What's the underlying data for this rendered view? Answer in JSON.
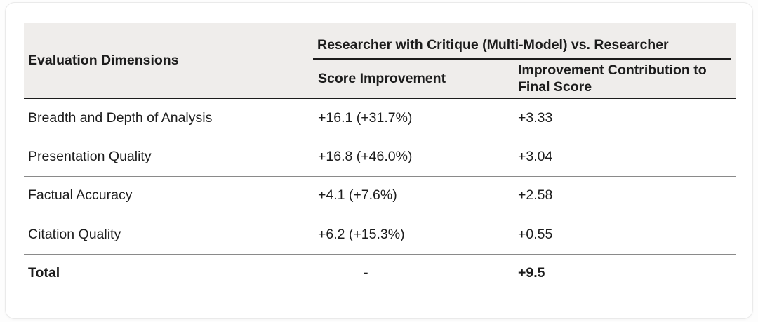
{
  "table": {
    "header": {
      "dimension_column": "Evaluation Dimensions",
      "group": "Researcher with Critique (Multi-Model) vs. Researcher",
      "sub_columns": {
        "score_improvement": "Score Improvement",
        "contribution": "Improvement Contribution to Final Score"
      }
    },
    "rows": [
      {
        "dimension": "Breadth and Depth of Analysis",
        "score_improvement": "+16.1 (+31.7%)",
        "contribution": "+3.33"
      },
      {
        "dimension": "Presentation Quality",
        "score_improvement": "+16.8 (+46.0%)",
        "contribution": "+3.04"
      },
      {
        "dimension": "Factual Accuracy",
        "score_improvement": "+4.1 (+7.6%)",
        "contribution": "+2.58"
      },
      {
        "dimension": "Citation Quality",
        "score_improvement": "+6.2 (+15.3%)",
        "contribution": "+0.55"
      },
      {
        "dimension": "Total",
        "score_improvement": "-",
        "contribution": "+9.5"
      }
    ],
    "colors": {
      "header_background": "#efedeb",
      "text": "#1c1c1c",
      "dark_rule": "#1c1c1c",
      "row_rule": "#8a8a8a"
    }
  },
  "chart_data": {
    "type": "table",
    "title": "Researcher with Critique (Multi-Model) vs. Researcher",
    "columns": [
      "Evaluation Dimensions",
      "Score Improvement",
      "Improvement Contribution to Final Score"
    ],
    "categories": [
      "Breadth and Depth of Analysis",
      "Presentation Quality",
      "Factual Accuracy",
      "Citation Quality",
      "Total"
    ],
    "series": [
      {
        "name": "Score Improvement",
        "values": [
          "+16.1 (+31.7%)",
          "+16.8 (+46.0%)",
          "+4.1 (+7.6%)",
          "+6.2 (+15.3%)",
          "-"
        ]
      },
      {
        "name": "Improvement Contribution to Final Score",
        "values": [
          3.33,
          3.04,
          2.58,
          0.55,
          9.5
        ]
      }
    ]
  }
}
